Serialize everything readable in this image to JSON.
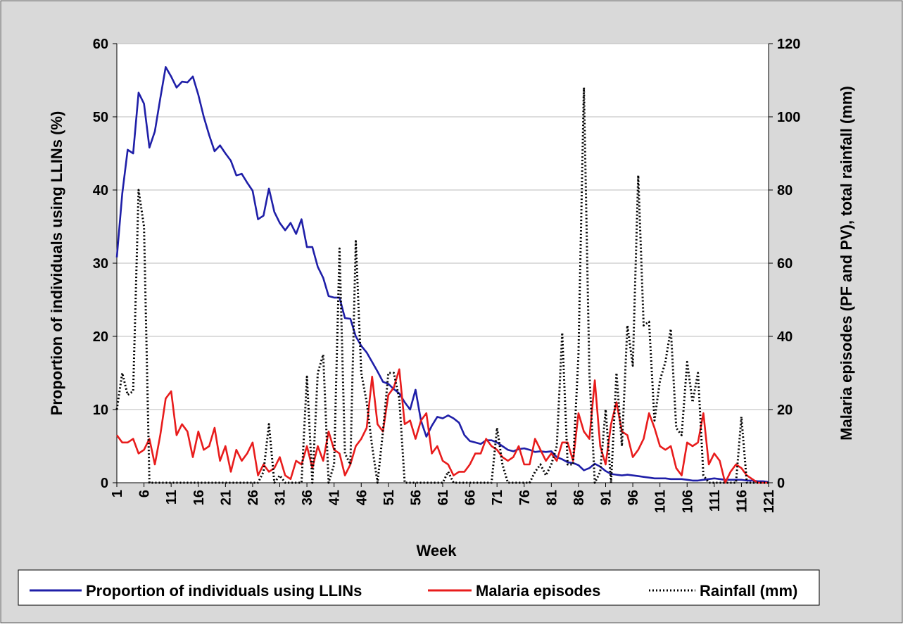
{
  "chart_data": {
    "type": "line",
    "x_label": "Week",
    "y_label": "Proportion of individuals using LLINs (%)",
    "y2_label": "Malaria episodes (PF and PV), total rainfall (mm)",
    "x": [
      1,
      2,
      3,
      4,
      5,
      6,
      7,
      8,
      9,
      10,
      11,
      12,
      13,
      14,
      15,
      16,
      17,
      18,
      19,
      20,
      21,
      22,
      23,
      24,
      25,
      26,
      27,
      28,
      29,
      30,
      31,
      32,
      33,
      34,
      35,
      36,
      37,
      38,
      39,
      40,
      41,
      42,
      43,
      44,
      45,
      46,
      47,
      48,
      49,
      50,
      51,
      52,
      53,
      54,
      55,
      56,
      57,
      58,
      59,
      60,
      61,
      62,
      63,
      64,
      65,
      66,
      67,
      68,
      69,
      70,
      71,
      72,
      73,
      74,
      75,
      76,
      77,
      78,
      79,
      80,
      81,
      82,
      83,
      84,
      85,
      86,
      87,
      88,
      89,
      90,
      91,
      92,
      93,
      94,
      95,
      96,
      97,
      98,
      99,
      100,
      101,
      102,
      103,
      104,
      105,
      106,
      107,
      108,
      109,
      110,
      111,
      112,
      113,
      114,
      115,
      116,
      117,
      118,
      119,
      120,
      121
    ],
    "xlim": [
      1,
      121
    ],
    "xticks": [
      1,
      6,
      11,
      16,
      21,
      26,
      31,
      36,
      41,
      46,
      51,
      56,
      61,
      66,
      71,
      76,
      81,
      86,
      91,
      96,
      101,
      106,
      111,
      116,
      121
    ],
    "ylim": [
      0,
      60
    ],
    "yticks": [
      0,
      10,
      20,
      30,
      40,
      50,
      60
    ],
    "y2lim": [
      0,
      120
    ],
    "y2ticks": [
      0,
      20,
      40,
      60,
      80,
      100,
      120
    ],
    "grid": true,
    "legend": "bottom",
    "series": [
      {
        "name": "Proportion of individuals using LLINs",
        "color": "#1f1fa8",
        "style": "solid",
        "axis": "y",
        "values": [
          30.8,
          39.5,
          45.5,
          45,
          53.3,
          51.8,
          45.8,
          48,
          52.5,
          56.8,
          55.5,
          54,
          54.8,
          54.7,
          55.5,
          53,
          50,
          47.5,
          45.3,
          46.1,
          45,
          44,
          42,
          42.2,
          41,
          39.9,
          36,
          36.5,
          40.2,
          37,
          35.5,
          34.5,
          35.5,
          34,
          36,
          32.2,
          32.2,
          29.5,
          28,
          25.5,
          25.3,
          25.3,
          22.5,
          22.4,
          20,
          18.7,
          17.8,
          16.5,
          15.2,
          13.8,
          13.5,
          12.8,
          12.2,
          11,
          10,
          12.7,
          8.5,
          6.3,
          7.8,
          9,
          8.8,
          9.2,
          8.8,
          8.2,
          6.5,
          5.7,
          5.5,
          5.3,
          5.8,
          5.8,
          5.5,
          5,
          4.5,
          4.3,
          4.6,
          4.7,
          4.5,
          4.2,
          4.3,
          4.2,
          4.3,
          3.5,
          3.2,
          2.8,
          2.7,
          2.4,
          1.7,
          2,
          2.6,
          2.2,
          1.6,
          1.2,
          1.1,
          1,
          1.1,
          1,
          0.9,
          0.8,
          0.7,
          0.6,
          0.6,
          0.6,
          0.5,
          0.5,
          0.5,
          0.4,
          0.3,
          0.3,
          0.4,
          0.5,
          0.6,
          0.5,
          0.4,
          0.4,
          0.4,
          0.4,
          0.3,
          0.3,
          0.2,
          0.2,
          0.1
        ]
      },
      {
        "name": "Malaria episodes",
        "color": "#e81c1c",
        "style": "solid",
        "axis": "y2",
        "values": [
          13,
          11,
          11,
          12,
          8,
          9,
          12,
          5,
          13,
          23,
          25,
          13,
          16,
          14,
          7,
          14,
          9,
          10,
          15,
          6,
          10,
          3,
          9,
          6,
          8,
          11,
          2,
          5,
          3,
          4,
          7,
          2,
          1,
          6,
          5,
          10,
          4,
          10,
          6,
          14,
          9,
          8,
          2,
          5,
          10,
          12,
          15,
          29,
          16,
          14,
          24,
          26,
          31,
          16,
          17,
          12,
          17,
          19,
          8,
          10,
          6,
          5,
          2,
          3,
          3,
          5,
          8,
          8,
          12,
          10,
          9,
          7,
          6,
          7,
          10,
          5,
          5,
          12,
          9,
          6,
          8,
          6,
          11,
          11,
          6,
          19,
          14,
          12,
          28,
          10,
          5,
          16,
          22,
          14,
          13,
          7,
          9,
          12,
          19,
          15,
          10,
          9,
          10,
          4,
          2,
          11,
          10,
          11,
          19,
          5,
          8,
          6,
          0,
          3,
          5,
          4,
          2,
          1,
          0,
          0,
          0
        ]
      },
      {
        "name": "Rainfall (mm)",
        "color": "#000000",
        "style": "dotted",
        "axis": "y2",
        "values": [
          20,
          30,
          24,
          25,
          80,
          70,
          0,
          0,
          0,
          0,
          0,
          0,
          0,
          0,
          0,
          0,
          0,
          0,
          0,
          0,
          0,
          0,
          0,
          0,
          0,
          0,
          0,
          3,
          16,
          0,
          2,
          0,
          0,
          0,
          0,
          29,
          0,
          30,
          35,
          0,
          5,
          64,
          8,
          5,
          66,
          30,
          22,
          10,
          0,
          14,
          30,
          30,
          23,
          0,
          0,
          0,
          0,
          0,
          0,
          0,
          0,
          3,
          0,
          0,
          0,
          0,
          0,
          0,
          0,
          0,
          15,
          5,
          0,
          0,
          0,
          0,
          0,
          3,
          5,
          2,
          5,
          10,
          41,
          5,
          5,
          35,
          108,
          30,
          0,
          3,
          20,
          0,
          30,
          10,
          43,
          32,
          84,
          43,
          44,
          17,
          28,
          33,
          42,
          15,
          13,
          33,
          22,
          30,
          2,
          0,
          0,
          0,
          0,
          0,
          0,
          18,
          0,
          0,
          0,
          0,
          0
        ]
      }
    ]
  }
}
